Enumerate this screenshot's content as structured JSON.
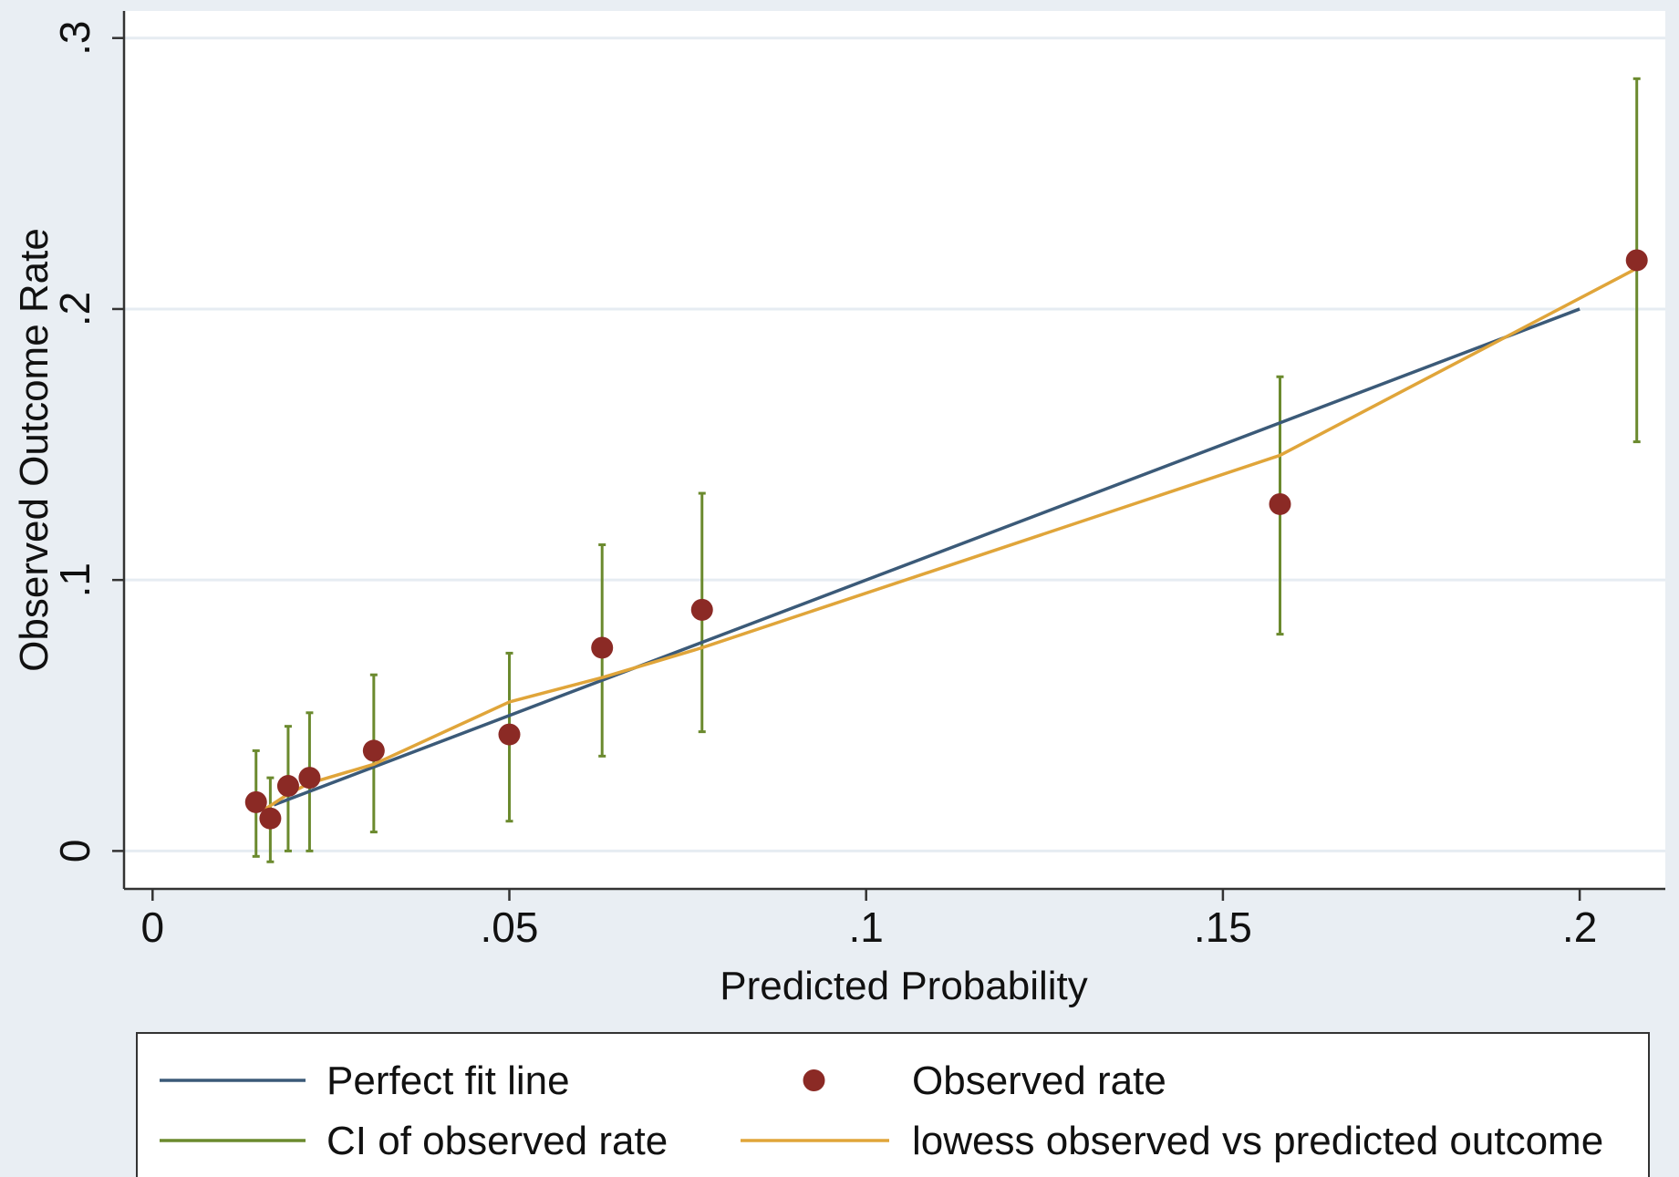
{
  "chart_data": {
    "type": "scatter",
    "xlabel": "Predicted Probability",
    "ylabel": "Observed Outcome Rate",
    "xlim": [
      -0.004,
      0.212
    ],
    "ylim": [
      -0.014,
      0.31
    ],
    "x_ticks": [
      0,
      0.05,
      0.1,
      0.15,
      0.2
    ],
    "x_tick_labels": [
      "0",
      ".05",
      ".1",
      ".15",
      ".2"
    ],
    "y_ticks": [
      0,
      0.1,
      0.2,
      0.3
    ],
    "y_tick_labels": [
      "0",
      ".1",
      ".2",
      ".3"
    ],
    "grid": true,
    "legend_position": "bottom",
    "colors": {
      "background": "#e9eef3",
      "plot_background": "#ffffff",
      "grid": "#e6ecf2",
      "perfect_fit": "#3b5a78",
      "ci": "#6b8a2e",
      "observed": "#8b2a25",
      "lowess": "#e0a53a",
      "axis": "#333333"
    },
    "series": [
      {
        "name": "Perfect fit line",
        "kind": "line",
        "x": [
          0.017,
          0.2
        ],
        "y": [
          0.017,
          0.2
        ]
      },
      {
        "name": "Observed rate",
        "kind": "points",
        "x": [
          0.0145,
          0.0165,
          0.019,
          0.022,
          0.031,
          0.05,
          0.063,
          0.077,
          0.158,
          0.208
        ],
        "y": [
          0.018,
          0.012,
          0.024,
          0.027,
          0.037,
          0.043,
          0.075,
          0.089,
          0.128,
          0.218
        ]
      },
      {
        "name": "CI of observed rate",
        "kind": "errorbars",
        "x": [
          0.0145,
          0.0165,
          0.019,
          0.022,
          0.031,
          0.05,
          0.063,
          0.077,
          0.158,
          0.208
        ],
        "low": [
          -0.002,
          -0.004,
          0.0,
          0.0,
          0.007,
          0.011,
          0.035,
          0.044,
          0.08,
          0.151
        ],
        "high": [
          0.037,
          0.027,
          0.046,
          0.051,
          0.065,
          0.073,
          0.113,
          0.132,
          0.175,
          0.285
        ]
      },
      {
        "name": "lowess observed vs predicted outcome",
        "kind": "line",
        "x": [
          0.0155,
          0.019,
          0.022,
          0.031,
          0.05,
          0.063,
          0.077,
          0.158,
          0.208
        ],
        "y": [
          0.015,
          0.021,
          0.025,
          0.032,
          0.055,
          0.064,
          0.075,
          0.146,
          0.215
        ]
      }
    ],
    "legend": [
      {
        "label": "Perfect fit line",
        "symbol": "line",
        "color": "#3b5a78"
      },
      {
        "label": "Observed rate",
        "symbol": "dot",
        "color": "#8b2a25"
      },
      {
        "label": "CI of observed rate",
        "symbol": "line",
        "color": "#6b8a2e"
      },
      {
        "label": "lowess observed vs predicted outcome",
        "symbol": "line",
        "color": "#e0a53a"
      }
    ]
  }
}
